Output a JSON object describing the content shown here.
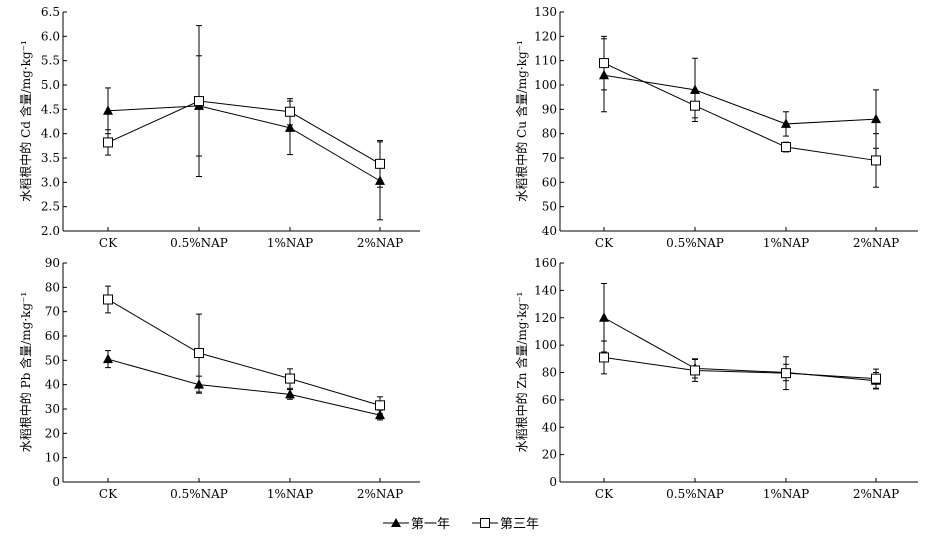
{
  "chart_data": [
    {
      "type": "line",
      "ylabel": "水稻根中的 Cd 含量/mg·kg⁻¹",
      "categories": [
        "CK",
        "0.5%NAP",
        "1%NAP",
        "2%NAP"
      ],
      "ylim": [
        2.0,
        6.5
      ],
      "yticks": [
        "2.0",
        "2.5",
        "3.0",
        "3.5",
        "4.0",
        "4.5",
        "5.0",
        "5.5",
        "6.0",
        "6.5"
      ],
      "series": [
        {
          "name": "第一年",
          "marker": "filled-triangle",
          "values": [
            4.47,
            4.57,
            4.12,
            3.03
          ],
          "err": [
            0.47,
            1.03,
            0.55,
            0.8
          ]
        },
        {
          "name": "第三年",
          "marker": "open-square",
          "values": [
            3.82,
            4.67,
            4.45,
            3.38
          ],
          "err": [
            0.26,
            1.55,
            0.27,
            0.48
          ]
        }
      ]
    },
    {
      "type": "line",
      "ylabel": "水稻根中的 Cu 含量/mg·kg⁻¹",
      "categories": [
        "CK",
        "0.5%NAP",
        "1%NAP",
        "2%NAP"
      ],
      "ylim": [
        40,
        130
      ],
      "yticks": [
        "40",
        "50",
        "60",
        "70",
        "80",
        "90",
        "100",
        "110",
        "120",
        "130"
      ],
      "series": [
        {
          "name": "第一年",
          "marker": "filled-triangle",
          "values": [
            104,
            98,
            84,
            86
          ],
          "err": [
            15,
            13,
            5,
            12
          ]
        },
        {
          "name": "第三年",
          "marker": "open-square",
          "values": [
            109,
            91.5,
            74.5,
            69
          ],
          "err": [
            11,
            5,
            2,
            11
          ]
        }
      ]
    },
    {
      "type": "line",
      "ylabel": "水稻根中的 Pb 含量/mg·kg⁻¹",
      "categories": [
        "CK",
        "0.5%NAP",
        "1%NAP",
        "2%NAP"
      ],
      "ylim": [
        0,
        90
      ],
      "yticks": [
        "0",
        "10",
        "20",
        "30",
        "40",
        "50",
        "60",
        "70",
        "80",
        "90"
      ],
      "series": [
        {
          "name": "第一年",
          "marker": "filled-triangle",
          "values": [
            50.5,
            40,
            36,
            27.5
          ],
          "err": [
            3.5,
            3.5,
            2,
            2
          ]
        },
        {
          "name": "第三年",
          "marker": "open-square",
          "values": [
            75,
            53,
            42.5,
            31.5
          ],
          "err": [
            5.5,
            16,
            4,
            3.5
          ]
        }
      ]
    },
    {
      "type": "line",
      "ylabel": "水稻根中的 Zn 含量/mg·kg⁻¹",
      "categories": [
        "CK",
        "0.5%NAP",
        "1%NAP",
        "2%NAP"
      ],
      "ylim": [
        0,
        160
      ],
      "yticks": [
        "0",
        "20",
        "40",
        "60",
        "80",
        "100",
        "120",
        "140",
        "160"
      ],
      "series": [
        {
          "name": "第一年",
          "marker": "filled-triangle",
          "values": [
            120,
            83,
            80,
            74
          ],
          "err": [
            25,
            7,
            6,
            6
          ]
        },
        {
          "name": "第三年",
          "marker": "open-square",
          "values": [
            91,
            81.5,
            79.5,
            75.5
          ],
          "err": [
            12,
            8,
            12,
            7
          ]
        }
      ]
    }
  ],
  "legend": {
    "placement": "bottom-center",
    "items": [
      {
        "label": "第一年",
        "marker": "filled-triangle"
      },
      {
        "label": "第三年",
        "marker": "open-square"
      }
    ]
  }
}
